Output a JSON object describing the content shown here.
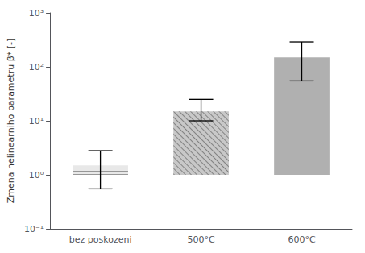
{
  "chart_data": {
    "type": "bar",
    "categories": [
      "bez poskozeni",
      "500°C",
      "600°C"
    ],
    "values": [
      1.5,
      15.0,
      150.0
    ],
    "error_plus": [
      1.3,
      10.0,
      140.0
    ],
    "error_minus": [
      0.95,
      5.0,
      95.0
    ],
    "colors": [
      "#e8e8e8",
      "#c8c8c8",
      "#b0b0b0"
    ],
    "ylabel": "Zmena nelinearniho parametru β* [-]",
    "log": "y",
    "ylim": [
      0.1,
      1000
    ],
    "yticks": [
      {
        "value": 0.1,
        "label": "10⁻¹"
      },
      {
        "value": 1,
        "label": "10⁰"
      },
      {
        "value": 10,
        "label": "10¹"
      },
      {
        "value": 100,
        "label": "10²"
      },
      {
        "value": 1000,
        "label": "10³"
      }
    ],
    "grid": false
  }
}
